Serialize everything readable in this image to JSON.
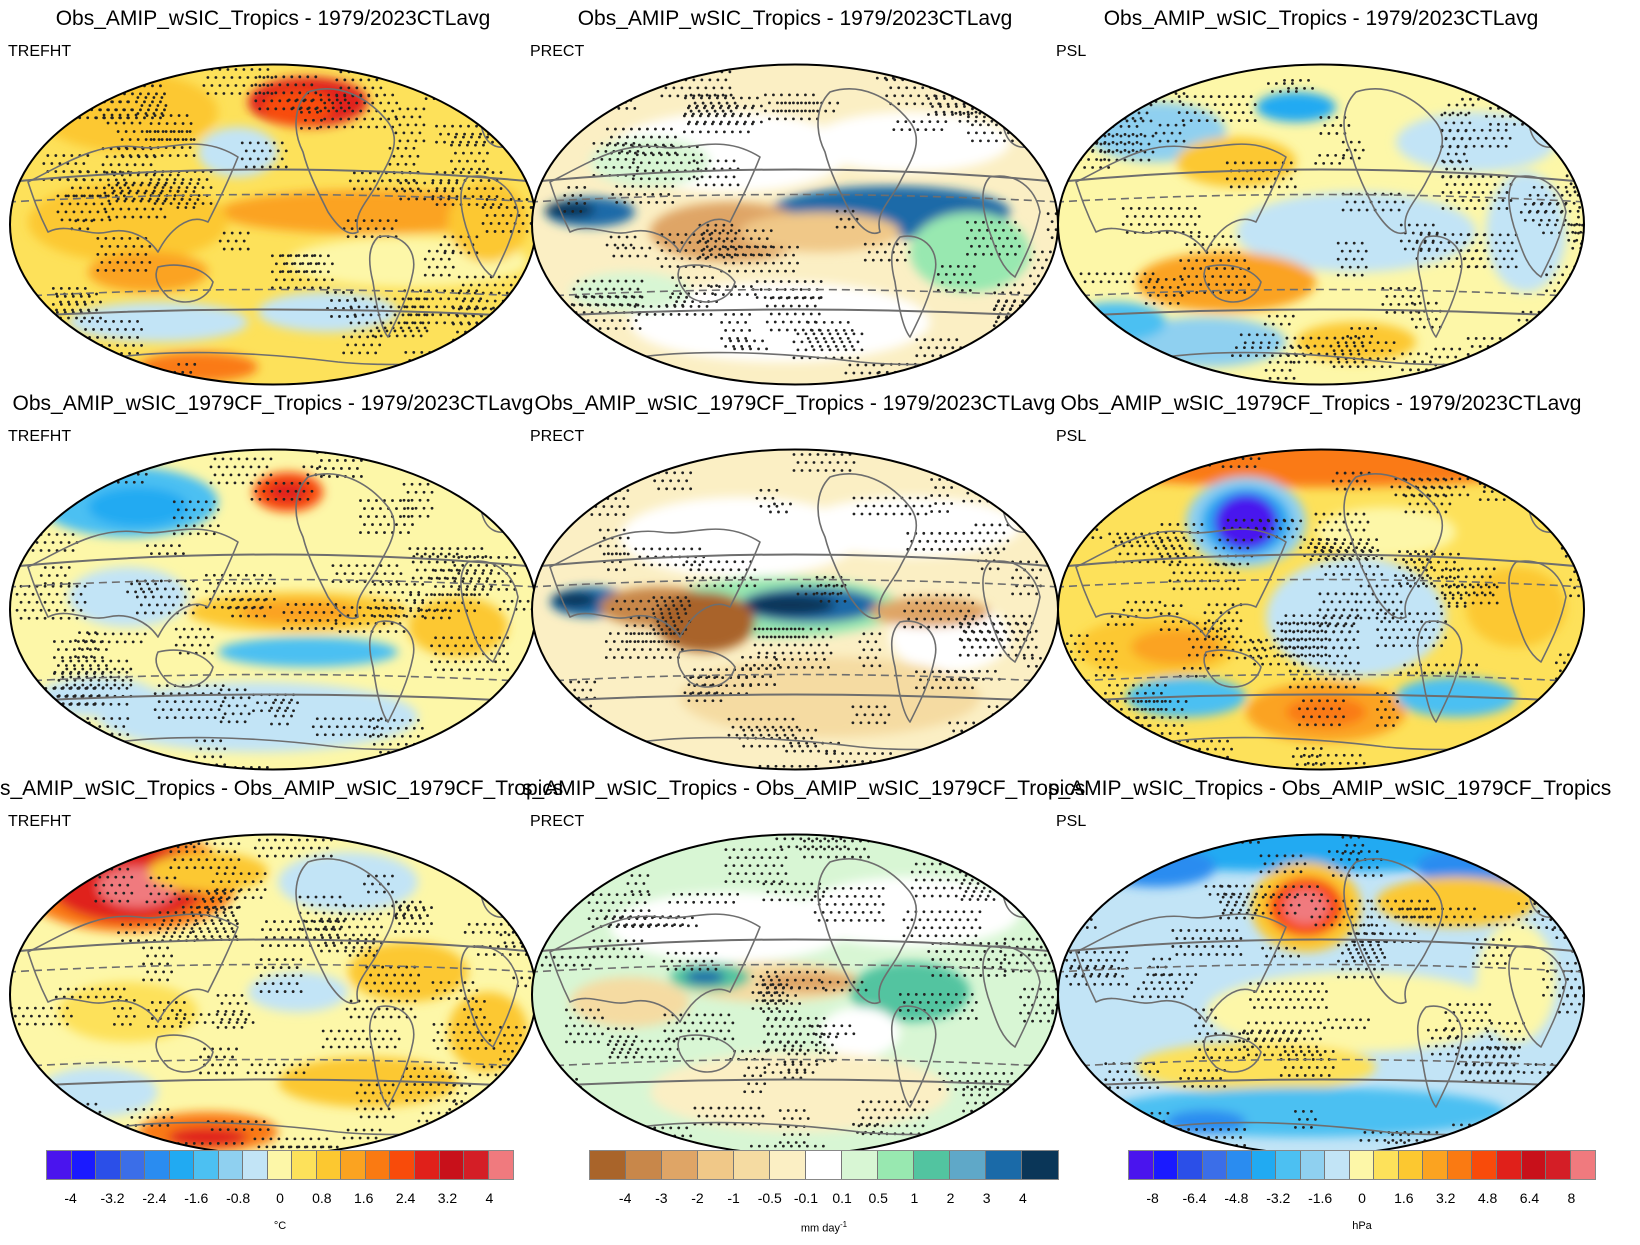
{
  "panels": [
    {
      "title": "Obs_AMIP_wSIC_Tropics - 1979/2023CTLavg",
      "variable": "TREFHT"
    },
    {
      "title": "Obs_AMIP_wSIC_Tropics - 1979/2023CTLavg",
      "variable": "PRECT"
    },
    {
      "title": "Obs_AMIP_wSIC_Tropics - 1979/2023CTLavg",
      "variable": "PSL"
    },
    {
      "title": "Obs_AMIP_wSIC_1979CF_Tropics - 1979/2023CTLavg",
      "variable": "TREFHT"
    },
    {
      "title": "Obs_AMIP_wSIC_1979CF_Tropics - 1979/2023CTLavg",
      "variable": "PRECT"
    },
    {
      "title": "Obs_AMIP_wSIC_1979CF_Tropics - 1979/2023CTLavg",
      "variable": "PSL"
    },
    {
      "title": "s_AMIP_wSIC_Tropics - Obs_AMIP_wSIC_1979CF_Tropics",
      "variable": "TREFHT"
    },
    {
      "title": "s_AMIP_wSIC_Tropics - Obs_AMIP_wSIC_1979CF_Tropics",
      "variable": "PRECT"
    },
    {
      "title": "s_AMIP_wSIC_Tropics - Obs_AMIP_wSIC_1979CF_Tropics",
      "variable": "PSL"
    }
  ],
  "colorbars": [
    {
      "name": "trefht",
      "unit": "°C",
      "ticks": [
        "-4",
        "-3.2",
        "-2.4",
        "-1.6",
        "-0.8",
        "0",
        "0.8",
        "1.6",
        "2.4",
        "3.2",
        "4"
      ],
      "colors": [
        "#4a14ee",
        "#1a1aff",
        "#2b4fe8",
        "#3b6ee8",
        "#2a8cf0",
        "#21aaf2",
        "#4cc0f2",
        "#8fd0f0",
        "#c2e4f6",
        "#fdf7a8",
        "#fde15a",
        "#fcc830",
        "#fba320",
        "#fa7a12",
        "#f84b0a",
        "#e0201a",
        "#c8101a",
        "#d41e26",
        "#f07a7e"
      ]
    },
    {
      "name": "prect",
      "unit": "mm day-1",
      "ticks": [
        "-4",
        "-3",
        "-2",
        "-1",
        "-0.5",
        "-0.1",
        "0.1",
        "0.5",
        "1",
        "2",
        "3",
        "4"
      ],
      "colors": [
        "#a9642a",
        "#c8874a",
        "#dfa566",
        "#f0c888",
        "#f5dba2",
        "#fbefc4",
        "#ffffff",
        "#d8f6d4",
        "#98e8b0",
        "#52c4a0",
        "#5fa8c8",
        "#1a6aa8",
        "#0a3658"
      ]
    },
    {
      "name": "psl",
      "unit": "hPa",
      "ticks": [
        "-8",
        "-6.4",
        "-4.8",
        "-3.2",
        "-1.6",
        "0",
        "1.6",
        "3.2",
        "4.8",
        "6.4",
        "8"
      ],
      "colors": [
        "#4a14ee",
        "#1a1aff",
        "#2b4fe8",
        "#3b6ee8",
        "#2a8cf0",
        "#21aaf2",
        "#4cc0f2",
        "#8fd0f0",
        "#c2e4f6",
        "#fdf7a8",
        "#fde15a",
        "#fcc830",
        "#fba320",
        "#fa7a12",
        "#f84b0a",
        "#e0201a",
        "#c8101a",
        "#d41e26",
        "#f07a7e"
      ]
    }
  ]
}
